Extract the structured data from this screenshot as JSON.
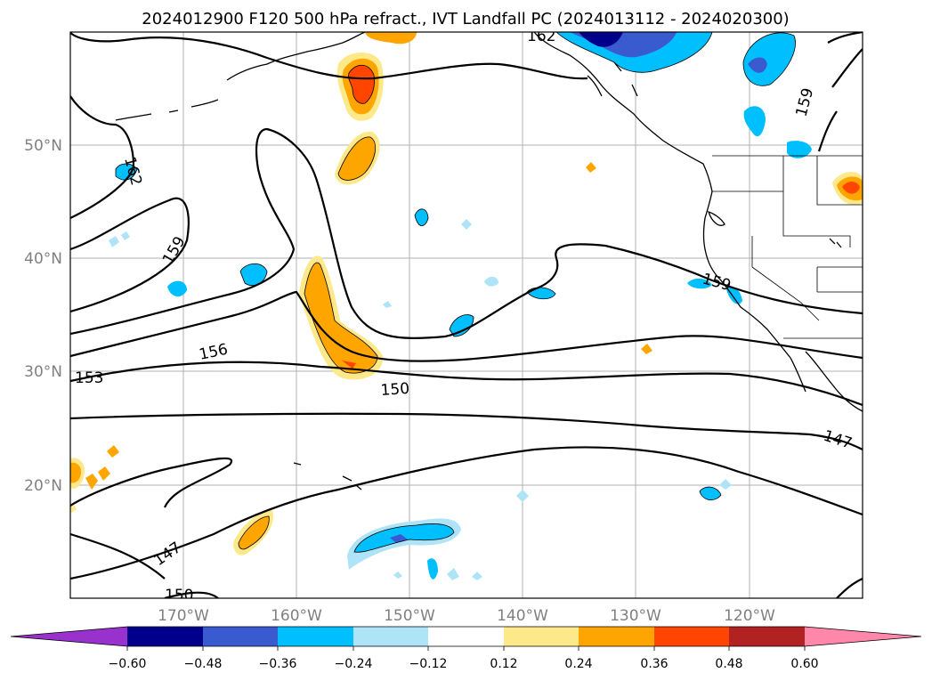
{
  "map": {
    "title": "2024012900 F120 500 hPa refract., IVT Landfall PC (2024013112 - 2024020300)",
    "lat_labels": [
      "50°N",
      "40°N",
      "30°N",
      "20°N"
    ],
    "lon_labels": [
      "170°W",
      "160°W",
      "150°W",
      "140°W",
      "130°W",
      "120°W"
    ],
    "contour_labels": [
      "162",
      "159",
      "156",
      "153",
      "150",
      "147",
      "159",
      "147",
      "150",
      "162",
      "159"
    ],
    "colorbar_ticks": [
      "−0.60",
      "−0.48",
      "−0.36",
      "−0.24",
      "−0.12",
      "0.12",
      "0.24",
      "0.36",
      "0.48",
      "0.60"
    ],
    "colorbar_colors": [
      "#9932cc",
      "#00008b",
      "#3a5bd0",
      "#00bfff",
      "#afe3f8",
      "#ffffff",
      "#fde98a",
      "#ffa500",
      "#ff4500",
      "#b22222",
      "#ff88aa"
    ],
    "extent": {
      "lon": [
        -180,
        -110
      ],
      "lat": [
        10,
        60
      ]
    }
  }
}
